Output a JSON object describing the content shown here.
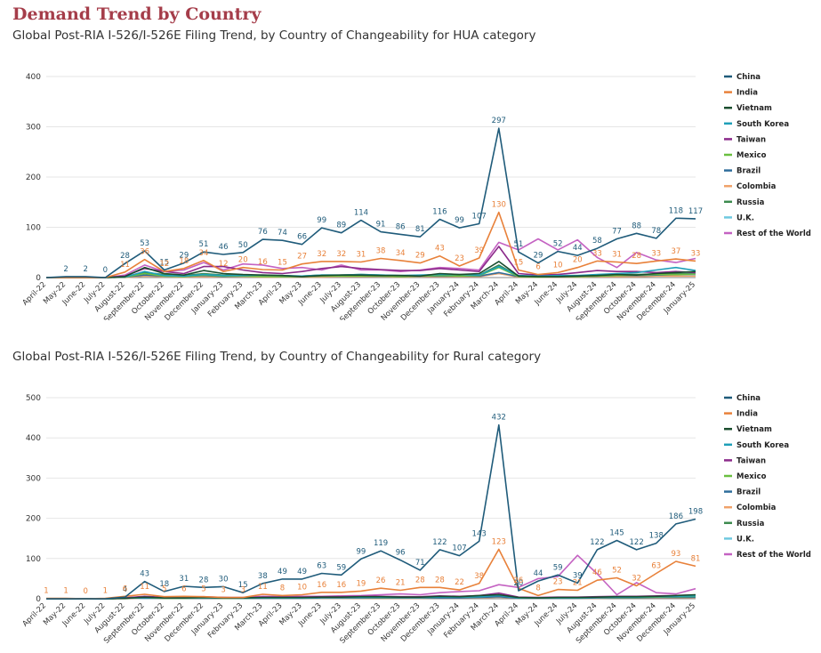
{
  "page": {
    "title": "Demand Trend by Country"
  },
  "chart_data": [
    {
      "type": "line",
      "title": "Global Post-RIA I-526/I-526E Filing Trend, by Country of Changeability for HUA category",
      "ylim": [
        0,
        400
      ],
      "yticks": [
        "0",
        "100",
        "200",
        "300",
        "400"
      ],
      "categories": [
        "April-22",
        "May-22",
        "June-22",
        "July-22",
        "August-22",
        "September-22",
        "October-22",
        "November-22",
        "December-22",
        "January-23",
        "February-23",
        "March-23",
        "April-23",
        "May-23",
        "June-23",
        "July-23",
        "August-23",
        "September-23",
        "October-23",
        "November-23",
        "December-23",
        "January-24",
        "February-24",
        "March-24",
        "April-24",
        "May-24",
        "June-24",
        "July-24",
        "August-24",
        "September-24",
        "October-24",
        "November-24",
        "December-24",
        "January-25"
      ],
      "series": [
        {
          "name": "China",
          "color": "#1f5b7a",
          "show_labels": true,
          "values": [
            0,
            2,
            2,
            0,
            28,
            53,
            15,
            29,
            51,
            46,
            50,
            76,
            74,
            66,
            99,
            89,
            114,
            91,
            86,
            81,
            116,
            99,
            107,
            297,
            51,
            29,
            52,
            44,
            58,
            77,
            88,
            78,
            118,
            117
          ]
        },
        {
          "name": "India",
          "color": "#e8813a",
          "show_labels": true,
          "values": [
            0,
            0,
            0,
            0,
            11,
            36,
            12,
            18,
            34,
            12,
            20,
            16,
            15,
            27,
            32,
            32,
            31,
            38,
            34,
            29,
            43,
            23,
            39,
            130,
            15,
            6,
            10,
            20,
            33,
            31,
            28,
            33,
            37,
            33
          ]
        },
        {
          "name": "Vietnam",
          "color": "#1a4d2e",
          "show_labels": false,
          "values": [
            0,
            0,
            0,
            0,
            2,
            20,
            8,
            5,
            14,
            8,
            6,
            5,
            4,
            2,
            4,
            5,
            5,
            4,
            4,
            3,
            8,
            6,
            8,
            32,
            3,
            2,
            2,
            3,
            4,
            6,
            5,
            8,
            10,
            12
          ]
        },
        {
          "name": "South Korea",
          "color": "#1f9fb8",
          "show_labels": false,
          "values": [
            0,
            0,
            0,
            0,
            1,
            12,
            4,
            3,
            6,
            4,
            4,
            5,
            4,
            3,
            5,
            5,
            6,
            5,
            4,
            5,
            6,
            6,
            5,
            22,
            4,
            3,
            4,
            4,
            6,
            8,
            10,
            15,
            20,
            14
          ]
        },
        {
          "name": "Taiwan",
          "color": "#8b2a8a",
          "show_labels": false,
          "values": [
            0,
            0,
            0,
            0,
            3,
            18,
            12,
            8,
            22,
            22,
            15,
            10,
            8,
            12,
            18,
            22,
            18,
            16,
            14,
            14,
            18,
            15,
            12,
            62,
            8,
            5,
            6,
            10,
            14,
            12,
            12,
            10,
            12,
            10
          ]
        },
        {
          "name": "Mexico",
          "color": "#6abf40",
          "show_labels": false,
          "values": [
            0,
            0,
            0,
            0,
            1,
            8,
            3,
            2,
            5,
            3,
            3,
            2,
            2,
            2,
            3,
            3,
            3,
            3,
            2,
            3,
            4,
            3,
            4,
            20,
            2,
            1,
            2,
            2,
            3,
            4,
            5,
            6,
            6,
            7
          ]
        },
        {
          "name": "Brazil",
          "color": "#2f6d9b",
          "show_labels": false,
          "values": [
            0,
            0,
            0,
            0,
            1,
            5,
            3,
            2,
            4,
            2,
            3,
            3,
            2,
            2,
            3,
            3,
            3,
            3,
            2,
            3,
            3,
            3,
            3,
            10,
            2,
            2,
            2,
            2,
            3,
            4,
            4,
            5,
            6,
            8
          ]
        },
        {
          "name": "Colombia",
          "color": "#f0a26a",
          "show_labels": false,
          "values": [
            0,
            0,
            0,
            0,
            0,
            3,
            2,
            1,
            2,
            1,
            2,
            1,
            1,
            1,
            1,
            2,
            2,
            2,
            1,
            2,
            2,
            2,
            2,
            8,
            1,
            1,
            1,
            1,
            2,
            2,
            2,
            3,
            3,
            3
          ]
        },
        {
          "name": "Russia",
          "color": "#3c8a4e",
          "show_labels": false,
          "values": [
            0,
            0,
            0,
            0,
            2,
            10,
            6,
            4,
            8,
            5,
            4,
            4,
            3,
            3,
            5,
            5,
            6,
            5,
            4,
            4,
            6,
            5,
            5,
            25,
            3,
            2,
            3,
            3,
            5,
            6,
            6,
            7,
            8,
            8
          ]
        },
        {
          "name": "U.K.",
          "color": "#6ec9e0",
          "show_labels": false,
          "values": [
            0,
            0,
            0,
            0,
            1,
            5,
            2,
            2,
            3,
            2,
            2,
            2,
            1,
            2,
            2,
            2,
            3,
            2,
            2,
            2,
            3,
            2,
            3,
            8,
            2,
            1,
            2,
            2,
            3,
            3,
            4,
            5,
            5,
            5
          ]
        },
        {
          "name": "Rest of the World",
          "color": "#c462c2",
          "show_labels": false,
          "values": [
            0,
            0,
            0,
            0,
            5,
            25,
            12,
            15,
            30,
            15,
            27,
            25,
            18,
            20,
            15,
            25,
            15,
            15,
            12,
            15,
            20,
            18,
            15,
            70,
            55,
            77,
            55,
            75,
            40,
            20,
            50,
            35,
            30,
            38
          ]
        }
      ]
    },
    {
      "type": "line",
      "title": "Global Post-RIA I-526/I-526E Filing Trend, by Country of Changeability for Rural category",
      "ylim": [
        0,
        500
      ],
      "yticks": [
        "0",
        "100",
        "200",
        "300",
        "400",
        "500"
      ],
      "categories": [
        "April-22",
        "May-22",
        "June-22",
        "July-22",
        "August-22",
        "September-22",
        "October-22",
        "November-22",
        "December-22",
        "January-23",
        "February-23",
        "March-23",
        "April-23",
        "May-23",
        "June-23",
        "July-23",
        "August-23",
        "September-23",
        "October-23",
        "November-23",
        "December-23",
        "January-24",
        "February-24",
        "March-24",
        "April-24",
        "May-24",
        "June-24",
        "July-24",
        "August-24",
        "September-24",
        "October-24",
        "November-24",
        "December-24",
        "January-25"
      ],
      "series": [
        {
          "name": "China",
          "color": "#1f5b7a",
          "show_labels": true,
          "values": [
            0,
            0,
            0,
            0,
            4,
            43,
            18,
            31,
            28,
            30,
            15,
            38,
            49,
            49,
            63,
            59,
            99,
            119,
            96,
            71,
            122,
            107,
            143,
            432,
            20,
            44,
            59,
            39,
            122,
            145,
            122,
            138,
            186,
            198
          ]
        },
        {
          "name": "India",
          "color": "#e8813a",
          "show_labels": true,
          "values": [
            1,
            1,
            0,
            1,
            6,
            11,
            5,
            6,
            5,
            3,
            3,
            11,
            8,
            10,
            16,
            16,
            19,
            26,
            21,
            28,
            28,
            22,
            38,
            123,
            26,
            8,
            23,
            21,
            46,
            52,
            32,
            63,
            93,
            81
          ]
        },
        {
          "name": "Vietnam",
          "color": "#1a4d2e",
          "show_labels": false,
          "values": [
            0,
            0,
            0,
            0,
            1,
            4,
            2,
            2,
            3,
            2,
            2,
            3,
            3,
            3,
            4,
            4,
            5,
            5,
            4,
            4,
            6,
            5,
            8,
            10,
            3,
            2,
            3,
            3,
            4,
            5,
            5,
            6,
            8,
            10
          ]
        },
        {
          "name": "South Korea",
          "color": "#1f9fb8",
          "show_labels": false,
          "values": [
            0,
            0,
            0,
            0,
            1,
            3,
            2,
            2,
            2,
            2,
            1,
            2,
            2,
            2,
            3,
            3,
            3,
            4,
            3,
            3,
            4,
            4,
            5,
            8,
            2,
            2,
            2,
            2,
            3,
            4,
            4,
            5,
            6,
            7
          ]
        },
        {
          "name": "Taiwan",
          "color": "#8b2a8a",
          "show_labels": false,
          "values": [
            0,
            0,
            0,
            0,
            2,
            6,
            3,
            3,
            4,
            3,
            2,
            4,
            4,
            4,
            5,
            5,
            6,
            6,
            5,
            5,
            7,
            6,
            8,
            14,
            4,
            3,
            4,
            4,
            5,
            6,
            6,
            7,
            8,
            9
          ]
        },
        {
          "name": "Mexico",
          "color": "#6abf40",
          "show_labels": false,
          "values": [
            0,
            0,
            0,
            0,
            1,
            3,
            1,
            1,
            2,
            1,
            1,
            2,
            2,
            2,
            3,
            3,
            3,
            3,
            3,
            3,
            4,
            4,
            5,
            10,
            2,
            2,
            2,
            2,
            3,
            3,
            3,
            4,
            5,
            6
          ]
        },
        {
          "name": "Brazil",
          "color": "#2f6d9b",
          "show_labels": false,
          "values": [
            0,
            0,
            0,
            0,
            1,
            2,
            1,
            1,
            1,
            1,
            1,
            1,
            1,
            1,
            2,
            2,
            2,
            2,
            2,
            2,
            2,
            2,
            3,
            5,
            1,
            1,
            1,
            1,
            2,
            2,
            2,
            3,
            3,
            4
          ]
        },
        {
          "name": "Colombia",
          "color": "#f0a26a",
          "show_labels": false,
          "values": [
            0,
            0,
            0,
            0,
            0,
            2,
            1,
            1,
            1,
            1,
            1,
            1,
            1,
            1,
            1,
            1,
            1,
            1,
            1,
            1,
            2,
            2,
            2,
            4,
            1,
            1,
            1,
            1,
            1,
            2,
            2,
            2,
            2,
            3
          ]
        },
        {
          "name": "Russia",
          "color": "#3c8a4e",
          "show_labels": false,
          "values": [
            0,
            0,
            0,
            0,
            1,
            3,
            2,
            2,
            2,
            2,
            1,
            2,
            2,
            2,
            3,
            3,
            3,
            3,
            3,
            3,
            4,
            4,
            5,
            9,
            2,
            2,
            2,
            2,
            3,
            3,
            3,
            4,
            5,
            6
          ]
        },
        {
          "name": "U.K.",
          "color": "#6ec9e0",
          "show_labels": false,
          "values": [
            0,
            0,
            0,
            0,
            0,
            1,
            1,
            1,
            1,
            1,
            1,
            1,
            1,
            1,
            1,
            1,
            2,
            2,
            2,
            2,
            2,
            2,
            2,
            4,
            1,
            1,
            1,
            1,
            2,
            2,
            2,
            2,
            3,
            3
          ]
        },
        {
          "name": "Rest of the World",
          "color": "#c462c2",
          "show_labels": false,
          "values": [
            0,
            0,
            0,
            0,
            2,
            5,
            3,
            4,
            5,
            3,
            3,
            6,
            5,
            6,
            6,
            7,
            8,
            10,
            12,
            10,
            15,
            18,
            20,
            35,
            28,
            50,
            55,
            108,
            62,
            10,
            40,
            15,
            12,
            25
          ]
        }
      ]
    }
  ]
}
